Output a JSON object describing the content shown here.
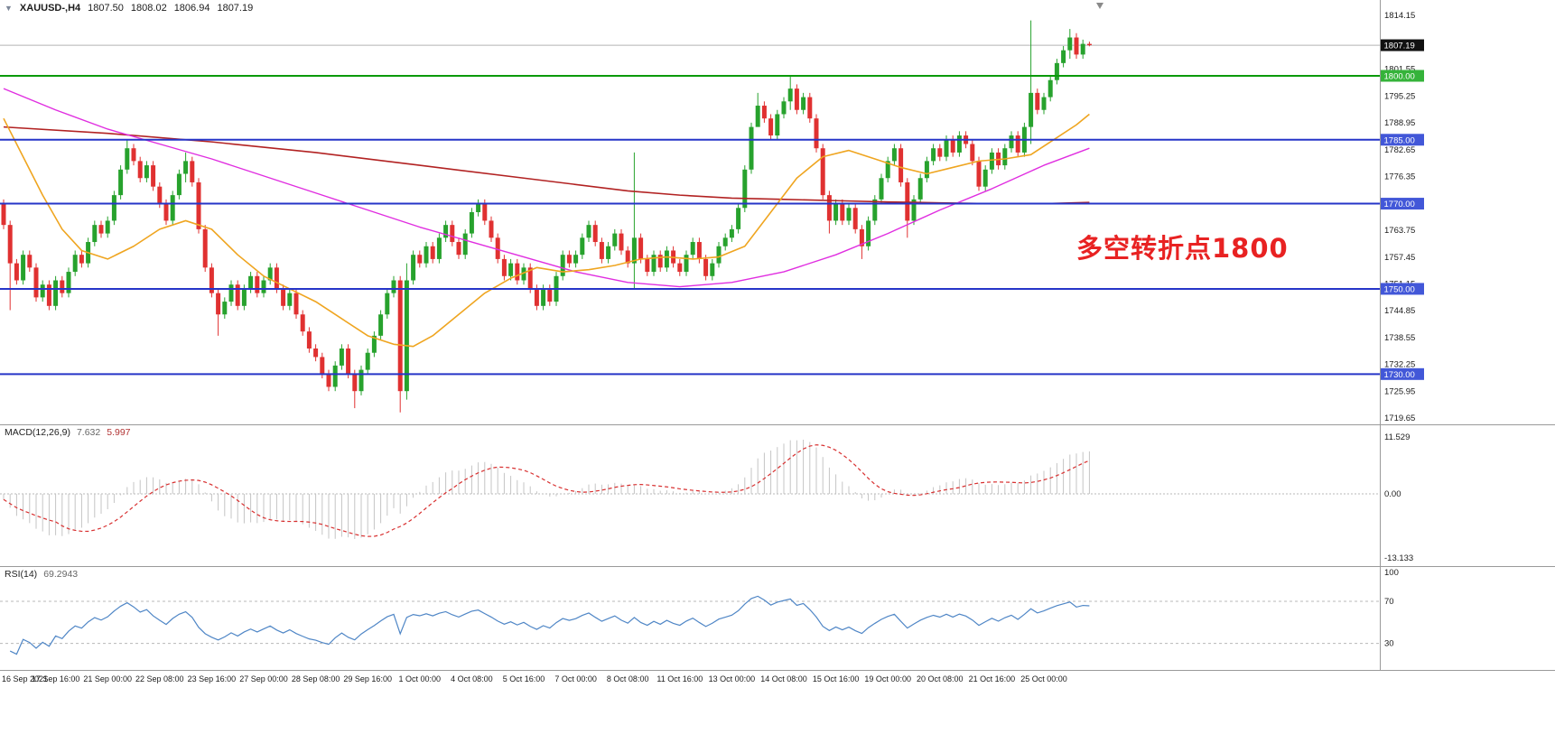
{
  "header": {
    "dropdown_glyph": "▼",
    "symbol_period": "XAUUSD-,H4",
    "open": "1807.50",
    "high": "1808.02",
    "low": "1806.94",
    "close": "1807.19"
  },
  "annotation": {
    "text": "多空转折点1800",
    "color": "#e82222"
  },
  "price_axis": {
    "top_price": 1817.8,
    "bottom_price": 1718.2,
    "ticks": [
      1814.15,
      1801.55,
      1795.25,
      1788.95,
      1782.65,
      1776.35,
      1763.75,
      1757.45,
      1751.15,
      1744.85,
      1738.55,
      1732.25,
      1725.95,
      1719.65
    ],
    "bid_price": 1807.19,
    "bid_label": "1807.19"
  },
  "levels": [
    {
      "price": 1800.0,
      "label": "1800.00",
      "line_color": "#0a9a0a",
      "tag_color": "#35b33a",
      "width": 2
    },
    {
      "price": 1785.0,
      "label": "1785.00",
      "line_color": "#2635c8",
      "tag_color": "#4257d8",
      "width": 2
    },
    {
      "price": 1770.0,
      "label": "1770.00",
      "line_color": "#2635c8",
      "tag_color": "#4257d8",
      "width": 2
    },
    {
      "price": 1750.0,
      "label": "1750.00",
      "line_color": "#2635c8",
      "tag_color": "#4257d8",
      "width": 2
    },
    {
      "price": 1730.0,
      "label": "1730.00",
      "line_color": "#2635c8",
      "tag_color": "#4257d8",
      "width": 2
    }
  ],
  "colors": {
    "up": "#27a22d",
    "down": "#e03131",
    "bid_line": "#b4b4b4",
    "macd_bar": "#c4c4c4",
    "macd_signal": "#d83030",
    "rsi_line": "#4f86c6",
    "axis_text": "#1b1b1b",
    "dashed_level": "#b8b8b8",
    "shift_marker": "#8a8a8a"
  },
  "chart_data": {
    "type": "candlestick",
    "symbol": "XAUUSD-",
    "timeframe": "H4",
    "title": "XAUUSD- H4 candlestick chart with MA lines, horizontal levels 1800/1785/1770/1750/1730, MACD(12,26,9) and RSI(14)",
    "candles_per_time_label": 8,
    "first_open": 1770,
    "prior_price": 1778,
    "default_wick": 1.0,
    "closes": [
      1765,
      1756,
      1752,
      1758,
      1755,
      1748,
      1751,
      1746,
      1752,
      1749,
      1754,
      1758,
      1756,
      1761,
      1765,
      1763,
      1766,
      1772,
      1778,
      1783,
      1780,
      1776,
      1779,
      1774,
      1770,
      1766,
      1772,
      1777,
      1780,
      1775,
      1764,
      1755,
      1749,
      1744,
      1747,
      1751,
      1746,
      1750,
      1753,
      1749,
      1752,
      1755,
      1750,
      1746,
      1749,
      1744,
      1740,
      1736,
      1734,
      1730,
      1727,
      1732,
      1736,
      1730,
      1726,
      1731,
      1735,
      1739,
      1744,
      1749,
      1752,
      1726,
      1752,
      1758,
      1756,
      1760,
      1757,
      1762,
      1765,
      1761,
      1758,
      1763,
      1768,
      1770,
      1766,
      1762,
      1757,
      1753,
      1756,
      1752,
      1755,
      1750,
      1746,
      1750,
      1747,
      1753,
      1758,
      1756,
      1758,
      1762,
      1765,
      1761,
      1757,
      1760,
      1763,
      1759,
      1756,
      1762,
      1757,
      1754,
      1758,
      1755,
      1759,
      1756,
      1754,
      1758,
      1761,
      1757,
      1753,
      1756,
      1760,
      1762,
      1764,
      1769,
      1778,
      1788,
      1793,
      1790,
      1786,
      1791,
      1794,
      1797,
      1792,
      1795,
      1790,
      1783,
      1772,
      1766,
      1770,
      1766,
      1769,
      1764,
      1760,
      1766,
      1771,
      1776,
      1780,
      1783,
      1775,
      1766,
      1771,
      1776,
      1780,
      1783,
      1781,
      1785,
      1782,
      1786,
      1784,
      1780,
      1774,
      1778,
      1782,
      1779,
      1783,
      1786,
      1782,
      1788,
      1796,
      1792,
      1795,
      1799,
      1803,
      1806,
      1809,
      1805,
      1807.5,
      1807.19
    ],
    "wick_overrides": {
      "1": [
        1766,
        1745
      ],
      "19": [
        1785,
        1777
      ],
      "28": [
        1782,
        1775
      ],
      "33": [
        1750,
        1739
      ],
      "54": [
        1731,
        1722
      ],
      "61": [
        1753,
        1721
      ],
      "62": [
        1756,
        1724
      ],
      "97": [
        1782,
        1750
      ],
      "116": [
        1796,
        1789
      ],
      "121": [
        1800,
        1792
      ],
      "127": [
        1773,
        1763
      ],
      "132": [
        1765,
        1757
      ],
      "139": [
        1776,
        1762
      ],
      "158": [
        1813,
        1784
      ],
      "164": [
        1811,
        1804
      ],
      "167": [
        1808.02,
        1806.94
      ]
    },
    "ma_fast": {
      "color": "#efa520",
      "points": [
        [
          0,
          1790
        ],
        [
          3,
          1781
        ],
        [
          6,
          1772
        ],
        [
          9,
          1764
        ],
        [
          12,
          1759
        ],
        [
          16,
          1757
        ],
        [
          20,
          1760
        ],
        [
          24,
          1764
        ],
        [
          28,
          1766
        ],
        [
          32,
          1764
        ],
        [
          36,
          1758
        ],
        [
          40,
          1753
        ],
        [
          44,
          1750
        ],
        [
          48,
          1747
        ],
        [
          52,
          1743
        ],
        [
          56,
          1739
        ],
        [
          60,
          1737
        ],
        [
          63,
          1736.5
        ],
        [
          66,
          1739
        ],
        [
          70,
          1744
        ],
        [
          74,
          1749
        ],
        [
          78,
          1752.5
        ],
        [
          82,
          1755
        ],
        [
          86,
          1754
        ],
        [
          90,
          1754.5
        ],
        [
          94,
          1755.5
        ],
        [
          98,
          1757
        ],
        [
          102,
          1757.5
        ],
        [
          106,
          1757
        ],
        [
          110,
          1757.5
        ],
        [
          114,
          1760
        ],
        [
          118,
          1768
        ],
        [
          122,
          1776
        ],
        [
          126,
          1781
        ],
        [
          130,
          1782.5
        ],
        [
          134,
          1780.5
        ],
        [
          138,
          1778.5
        ],
        [
          142,
          1777
        ],
        [
          146,
          1778.5
        ],
        [
          150,
          1780
        ],
        [
          154,
          1780.5
        ],
        [
          158,
          1781.5
        ],
        [
          162,
          1785.5
        ],
        [
          165,
          1788.5
        ],
        [
          167,
          1791
        ]
      ]
    },
    "ma_mid": {
      "color": "#e02ee0",
      "points": [
        [
          0,
          1797
        ],
        [
          8,
          1792
        ],
        [
          16,
          1787.5
        ],
        [
          24,
          1784
        ],
        [
          32,
          1780.5
        ],
        [
          40,
          1776.5
        ],
        [
          48,
          1772.5
        ],
        [
          56,
          1768.5
        ],
        [
          64,
          1764.5
        ],
        [
          72,
          1761
        ],
        [
          80,
          1757.5
        ],
        [
          88,
          1754
        ],
        [
          96,
          1751.5
        ],
        [
          104,
          1750.5
        ],
        [
          112,
          1751.5
        ],
        [
          120,
          1754
        ],
        [
          128,
          1758
        ],
        [
          136,
          1763
        ],
        [
          144,
          1768.5
        ],
        [
          152,
          1773.5
        ],
        [
          160,
          1779
        ],
        [
          167,
          1783
        ]
      ]
    },
    "ma_slow": {
      "color": "#b22222",
      "points": [
        [
          0,
          1788
        ],
        [
          16,
          1786.5
        ],
        [
          32,
          1784.5
        ],
        [
          48,
          1782
        ],
        [
          64,
          1779
        ],
        [
          80,
          1776
        ],
        [
          96,
          1773
        ],
        [
          104,
          1772
        ],
        [
          112,
          1771.3
        ],
        [
          120,
          1771
        ],
        [
          128,
          1770.7
        ],
        [
          136,
          1770.4
        ],
        [
          144,
          1770.2
        ],
        [
          152,
          1770
        ],
        [
          160,
          1770
        ],
        [
          167,
          1770.3
        ]
      ]
    },
    "macd": {
      "fast": 12,
      "slow": 26,
      "signal": 9,
      "display": {
        "label": "MACD(12,26,9)",
        "value_main": "7.632",
        "value_signal": "5.997",
        "axis_labels": [
          "11.529",
          "0.00",
          "-13.133"
        ]
      }
    },
    "rsi": {
      "period": 14,
      "display": {
        "label": "RSI(14)",
        "value": "69.2943",
        "axis_labels": [
          "100",
          "70",
          "30"
        ],
        "levels": [
          70,
          30
        ]
      }
    },
    "time_labels": [
      "16 Sep 2021",
      "17 Sep 16:00",
      "21 Sep 00:00",
      "22 Sep 08:00",
      "23 Sep 16:00",
      "27 Sep 00:00",
      "28 Sep 08:00",
      "29 Sep 16:00",
      "1 Oct 00:00",
      "4 Oct 08:00",
      "5 Oct 16:00",
      "7 Oct 00:00",
      "8 Oct 08:00",
      "11 Oct 16:00",
      "13 Oct 00:00",
      "14 Oct 08:00",
      "15 Oct 16:00",
      "19 Oct 00:00",
      "20 Oct 08:00",
      "21 Oct 16:00",
      "25 Oct 00:00"
    ]
  }
}
